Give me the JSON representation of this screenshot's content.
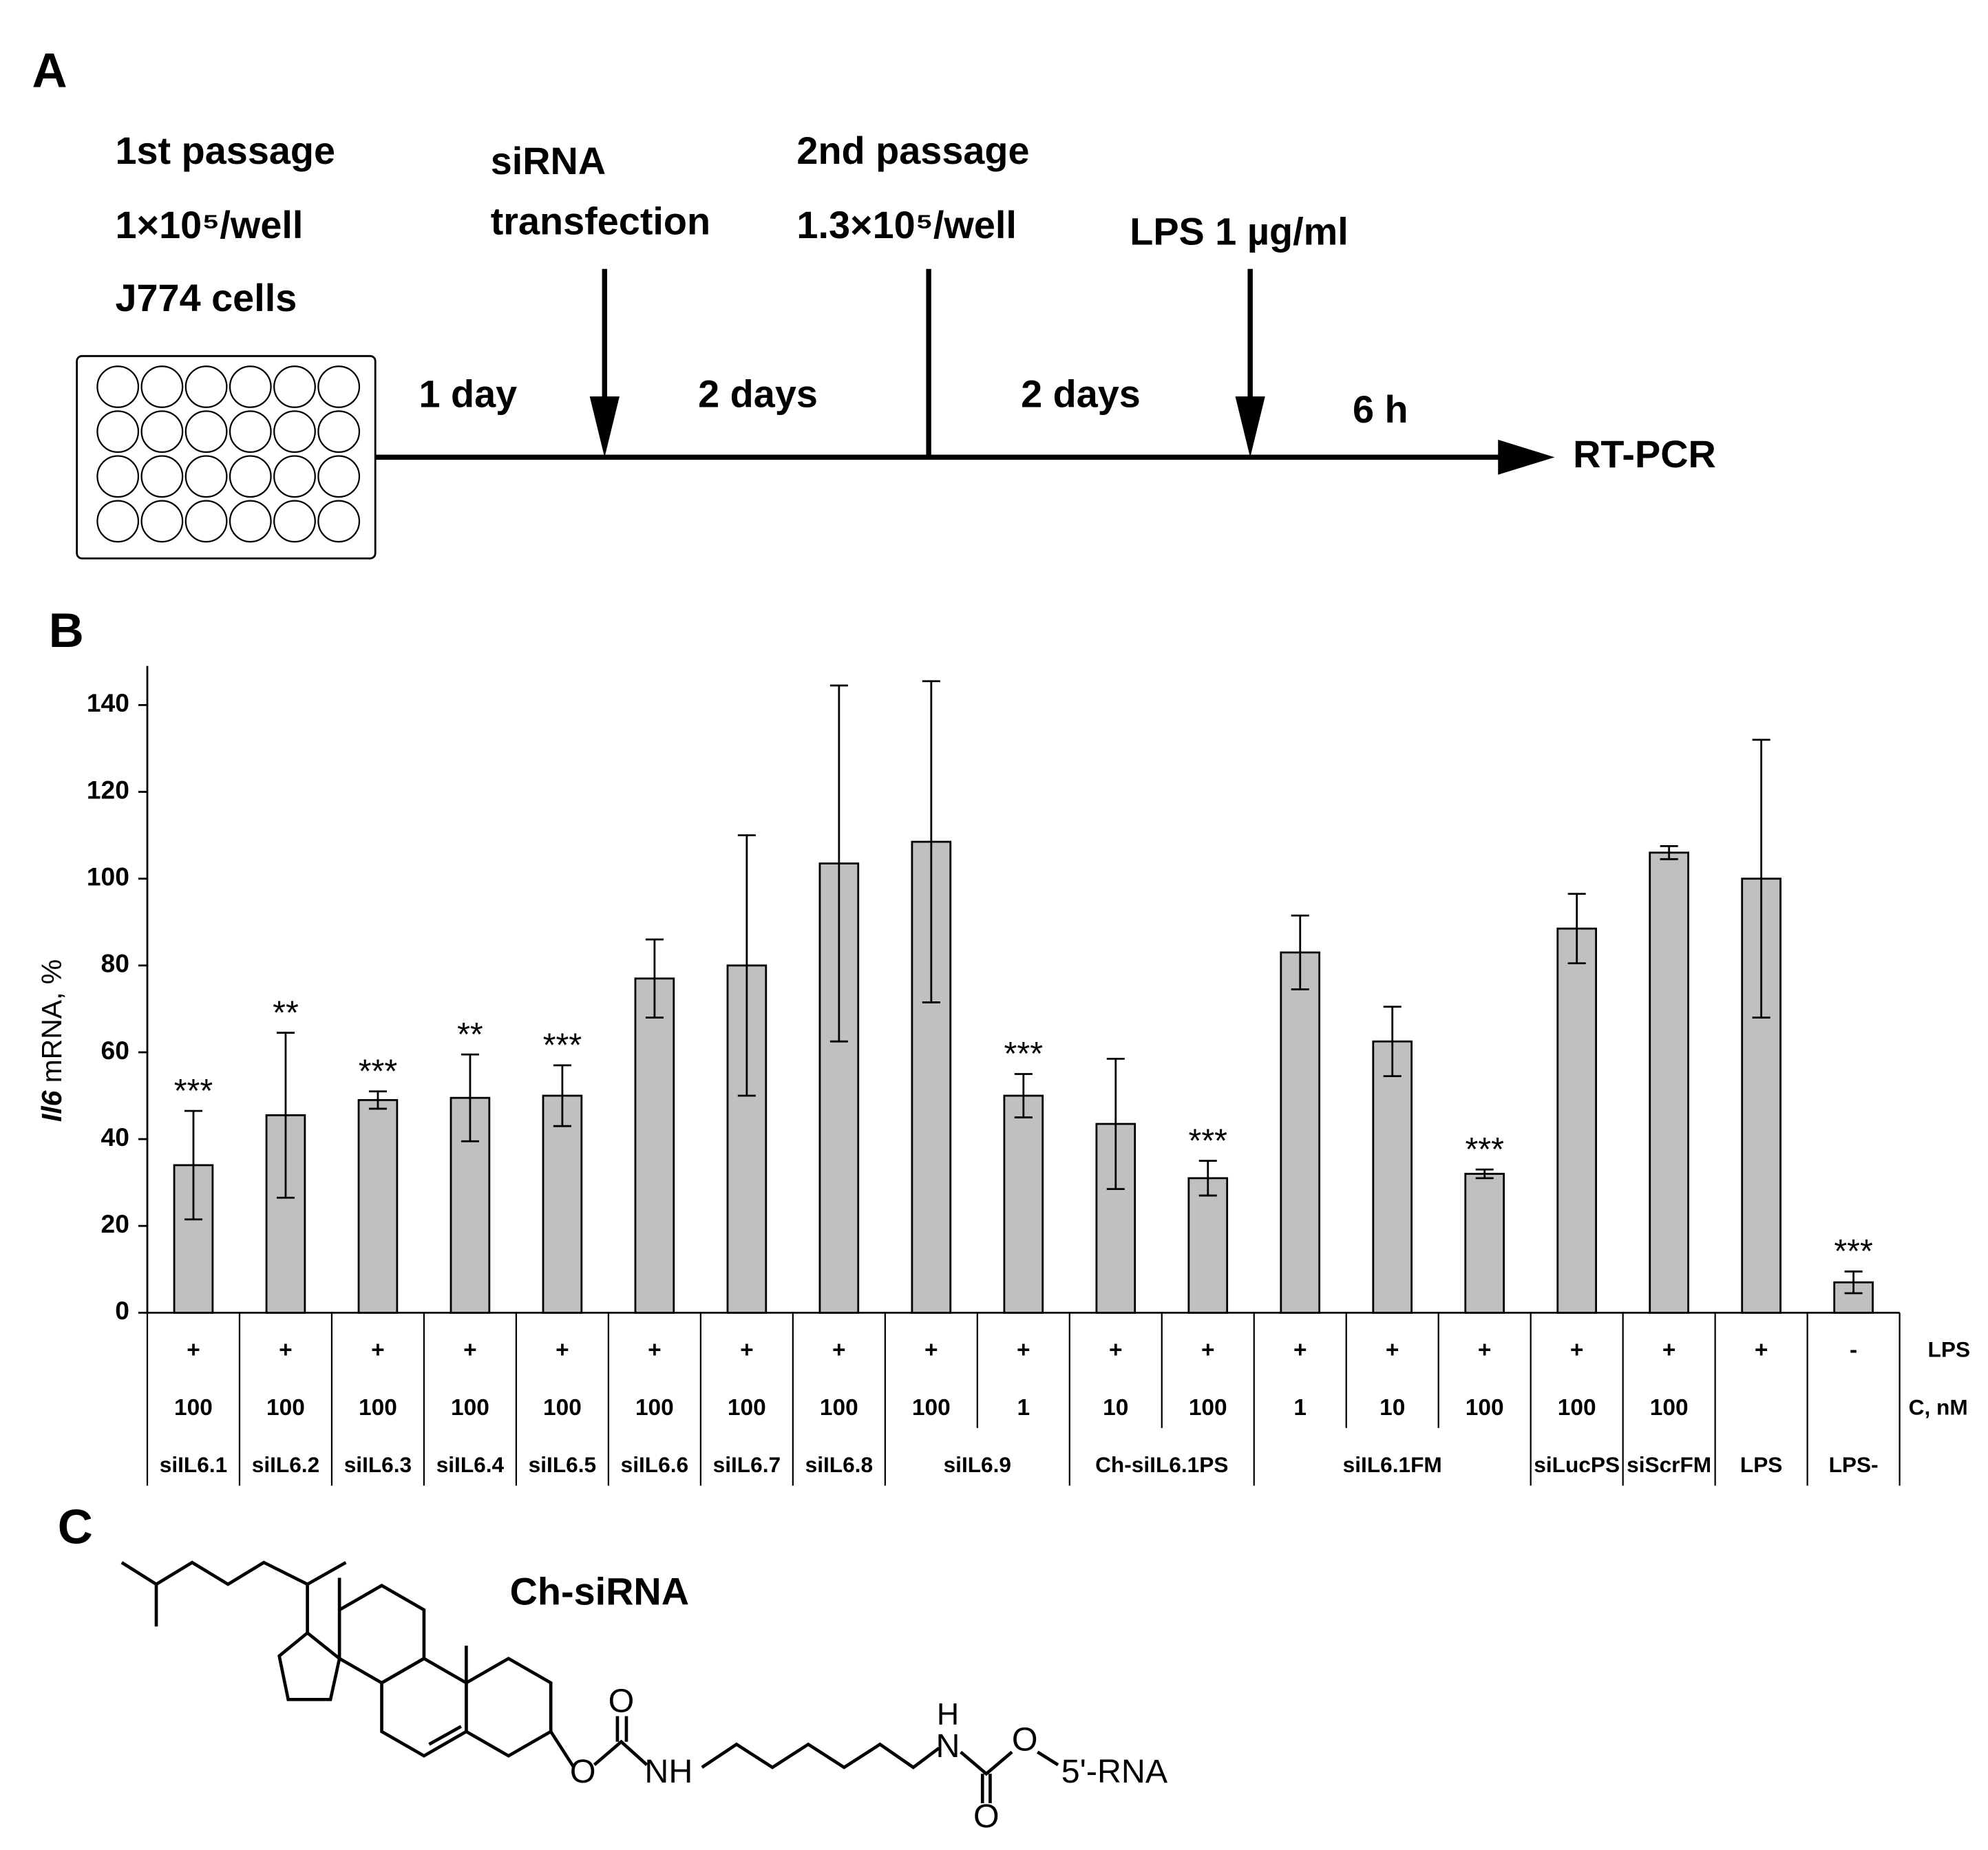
{
  "panels": {
    "a": "A",
    "b": "B",
    "c": "C"
  },
  "scheme": {
    "first_passage": [
      "1st passage",
      "1×10⁵/well",
      "J774 cells"
    ],
    "transfection": [
      "siRNA",
      "transfection"
    ],
    "second_passage": [
      "2nd passage",
      "1.3×10⁵/well"
    ],
    "lps": "LPS 1 µg/ml",
    "intervals": [
      "1 day",
      "2 days",
      "2 days",
      "6 h"
    ],
    "readout": "RT-PCR"
  },
  "chart_data": {
    "type": "bar",
    "ylabel": {
      "gene": "Il6",
      "unit": "mRNA, %"
    },
    "values": [
      34,
      45.5,
      49,
      49.5,
      50,
      77,
      80,
      103.5,
      108.5,
      50,
      43.5,
      31,
      83,
      62.5,
      32,
      88.5,
      106,
      100,
      7
    ],
    "errors": [
      12.5,
      19,
      2,
      10,
      7,
      9,
      30,
      41,
      37,
      5,
      15,
      4,
      8.5,
      8,
      1,
      8,
      1.5,
      32,
      2.5
    ],
    "annotations": [
      "***",
      "**",
      "***",
      "**",
      "***",
      null,
      null,
      null,
      null,
      "***",
      null,
      "***",
      null,
      null,
      "***",
      null,
      null,
      null,
      "***"
    ],
    "color": "#c0c0c0",
    "ylim": [
      0,
      149
    ],
    "yticks": [
      0,
      20,
      40,
      60,
      80,
      100,
      120,
      140
    ]
  },
  "table": {
    "lps_label": "LPS",
    "conc_label": "C, nM",
    "lps": [
      "+",
      "+",
      "+",
      "+",
      "+",
      "+",
      "+",
      "+",
      "+",
      "+",
      "+",
      "+",
      "+",
      "+",
      "+",
      "+",
      "+",
      "+",
      "-"
    ],
    "conc": [
      100,
      100,
      100,
      100,
      100,
      100,
      100,
      100,
      100,
      1,
      10,
      100,
      1,
      10,
      100,
      100,
      100,
      null,
      null
    ],
    "groups": [
      {
        "name": "siIL6.1",
        "span": 1
      },
      {
        "name": "siIL6.2",
        "span": 1
      },
      {
        "name": "siIL6.3",
        "span": 1
      },
      {
        "name": "siIL6.4",
        "span": 1
      },
      {
        "name": "siIL6.5",
        "span": 1
      },
      {
        "name": "siIL6.6",
        "span": 1
      },
      {
        "name": "siIL6.7",
        "span": 1
      },
      {
        "name": "siIL6.8",
        "span": 1
      },
      {
        "name": "siIL6.9",
        "span": 2
      },
      {
        "name": "Ch-siIL6.1PS",
        "span": 2
      },
      {
        "name": "siIL6.1FM",
        "span": 3
      },
      {
        "name": "siLucPS",
        "span": 1
      },
      {
        "name": "siScrFM",
        "span": 1
      },
      {
        "name": "LPS",
        "span": 1
      },
      {
        "name": "LPS-",
        "span": 1
      }
    ]
  },
  "structure": {
    "name": "Ch-siRNA",
    "atoms": [
      "O",
      "O",
      "NH",
      "H",
      "N",
      "O",
      "O",
      "5'-RNA"
    ]
  }
}
